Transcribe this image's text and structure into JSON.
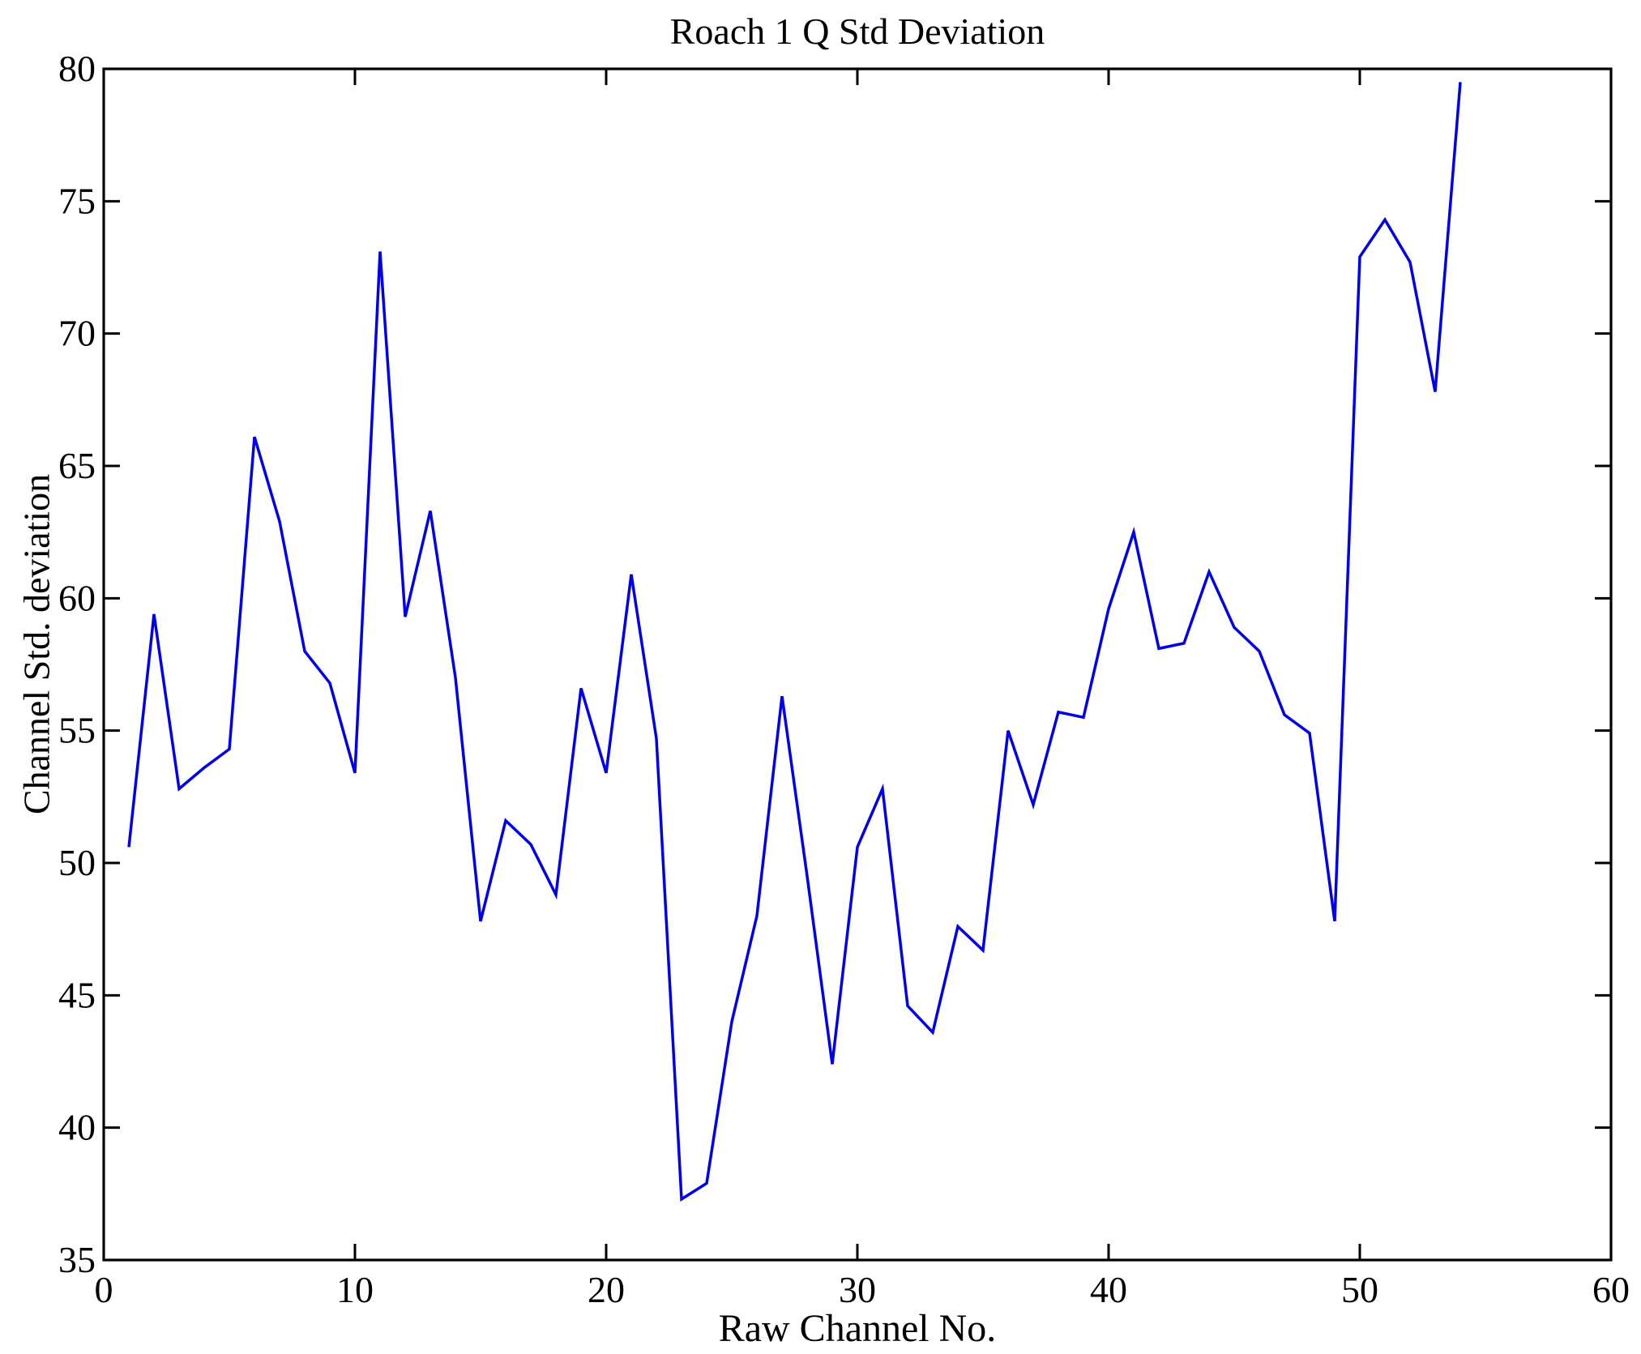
{
  "chart_data": {
    "type": "line",
    "title": "Roach 1 Q Std Deviation",
    "xlabel": "Raw Channel No.",
    "ylabel": "Channel Std. deviation",
    "xlim": [
      0,
      60
    ],
    "ylim": [
      35,
      80
    ],
    "xticks": [
      0,
      10,
      20,
      30,
      40,
      50,
      60
    ],
    "yticks": [
      35,
      40,
      45,
      50,
      55,
      60,
      65,
      70,
      75,
      80
    ],
    "grid": false,
    "legend": "none",
    "line_color": "#0000ee",
    "axes_color": "#000000",
    "background": "#ffffff",
    "series_name": "channel-std-deviation",
    "x": [
      1,
      2,
      3,
      4,
      5,
      6,
      7,
      8,
      9,
      10,
      11,
      12,
      13,
      14,
      15,
      16,
      17,
      18,
      19,
      20,
      21,
      22,
      23,
      24,
      25,
      26,
      27,
      28,
      29,
      30,
      31,
      32,
      33,
      34,
      35,
      36,
      37,
      38,
      39,
      40,
      41,
      42,
      43,
      44,
      45,
      46,
      47,
      48,
      49,
      50,
      51,
      52,
      53,
      54
    ],
    "values": [
      50.6,
      59.4,
      52.8,
      53.6,
      54.3,
      66.1,
      62.9,
      58.0,
      56.8,
      53.4,
      73.1,
      59.3,
      63.3,
      57.0,
      47.8,
      51.6,
      50.7,
      48.8,
      56.6,
      53.4,
      60.9,
      54.7,
      37.3,
      37.9,
      44.0,
      48.0,
      56.3,
      49.5,
      42.4,
      50.6,
      52.8,
      44.6,
      43.6,
      47.6,
      46.7,
      55.0,
      52.2,
      55.7,
      55.5,
      59.6,
      62.5,
      58.1,
      58.3,
      61.0,
      58.9,
      58.0,
      55.6,
      54.9,
      47.8,
      72.9,
      74.3,
      72.7,
      67.8,
      79.5
    ]
  }
}
